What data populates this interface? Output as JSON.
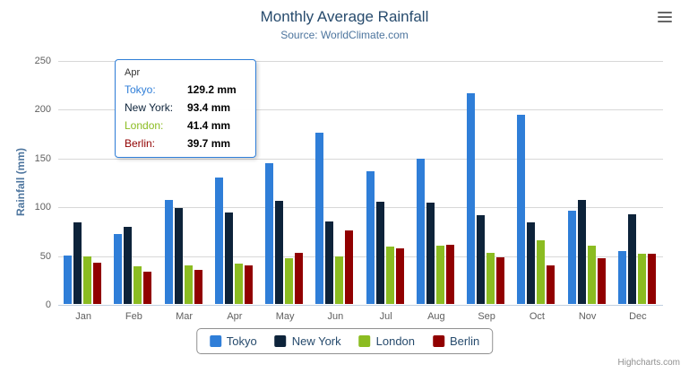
{
  "chart_data": {
    "type": "bar",
    "title": "Monthly Average Rainfall",
    "subtitle": "Source: WorldClimate.com",
    "categories": [
      "Jan",
      "Feb",
      "Mar",
      "Apr",
      "May",
      "Jun",
      "Jul",
      "Aug",
      "Sep",
      "Oct",
      "Nov",
      "Dec"
    ],
    "series": [
      {
        "name": "Tokyo",
        "color": "#2f7ed8",
        "values": [
          49.9,
          71.5,
          106.4,
          129.2,
          144.0,
          176.0,
          135.6,
          148.5,
          216.4,
          194.1,
          95.6,
          54.4
        ]
      },
      {
        "name": "New York",
        "color": "#0d233a",
        "values": [
          83.6,
          78.8,
          98.5,
          93.4,
          106.0,
          84.5,
          105.0,
          104.3,
          91.2,
          83.5,
          106.6,
          92.3
        ]
      },
      {
        "name": "London",
        "color": "#8bbc21",
        "values": [
          48.9,
          38.8,
          39.3,
          41.4,
          47.0,
          48.3,
          59.0,
          59.6,
          52.4,
          65.2,
          59.3,
          51.2
        ]
      },
      {
        "name": "Berlin",
        "color": "#910000",
        "values": [
          42.4,
          33.2,
          34.5,
          39.7,
          52.6,
          75.5,
          57.4,
          60.4,
          47.6,
          39.1,
          46.8,
          51.1
        ]
      }
    ],
    "xlabel": "",
    "ylabel": "Rainfall (mm)",
    "ylim": [
      0,
      250
    ],
    "yticks": [
      0,
      50,
      100,
      150,
      200,
      250
    ],
    "grid": true,
    "legend_position": "bottom"
  },
  "tooltip": {
    "category": "Apr",
    "rows": [
      {
        "label": "Tokyo:",
        "value": "129.2 mm",
        "color": "#2f7ed8"
      },
      {
        "label": "New York:",
        "value": "93.4 mm",
        "color": "#0d233a"
      },
      {
        "label": "London:",
        "value": "41.4 mm",
        "color": "#8bbc21"
      },
      {
        "label": "Berlin:",
        "value": "39.7 mm",
        "color": "#910000"
      }
    ]
  },
  "credits": {
    "label": "Highcharts.com"
  },
  "export_menu": {
    "icon": "hamburger-menu-icon"
  }
}
